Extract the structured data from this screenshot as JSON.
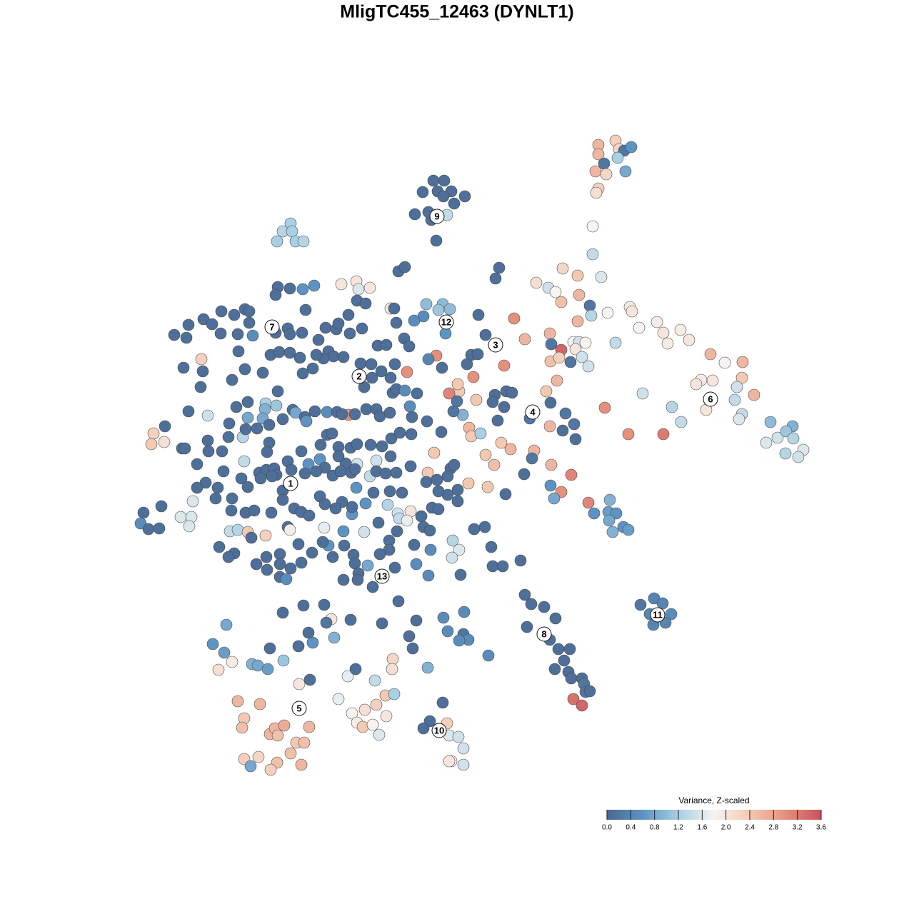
{
  "chart_data": {
    "type": "scatter",
    "title": "MligTC455_12463 (DYNLT1)",
    "xlim": [
      0,
      1280
    ],
    "ylim": [
      1280,
      0
    ],
    "x": [
      607,
      622,
      592,
      613,
      632,
      651,
      621,
      636,
      581,
      604,
      626,
      611,
      600,
      862,
      838,
      867,
      874,
      884,
      838,
      865,
      846,
      834,
      849,
      876,
      838,
      835,
      830,
      830,
      842,
      407,
      396,
      409,
      388,
      414,
      425,
      788,
      809,
      751,
      768,
      778,
      786,
      811,
      826,
      828,
      809,
      851,
      882,
      885,
      895,
      920,
      929,
      953,
      935,
      965,
      770,
      772,
      786,
      803,
      811,
      820,
      806,
      815,
      824,
      771,
      783,
      799,
      862,
      765,
      780,
      735,
      720,
      706,
      663,
      643,
      629,
      611,
      570,
      488,
      995,
      1015,
      1040,
      1039,
      982,
      975,
      998,
      1032,
      1056,
      900,
      941,
      989,
      1039,
      1035,
      954,
      847,
      880,
      929,
      1079,
      1110,
      1089,
      1101,
      1111,
      1073,
      1100,
      1125,
      1118,
      1029,
      693,
      709,
      717,
      706,
      690,
      697,
      742,
      771,
      792,
      804,
      788,
      806,
      770,
      748,
      745,
      734,
      772,
      800,
      771,
      786,
      776,
      708,
      824,
      832,
      854,
      852,
      863,
      853,
      873,
      880,
      858,
      715,
      702,
      692,
      680,
      683,
      657,
      660,
      673,
      667,
      648,
      635,
      640,
      641,
      916,
      928,
      897,
      910,
      940,
      932,
      915,
      735,
      744,
      762,
      778,
      738,
      770,
      782,
      798,
      790,
      777,
      796,
      800,
      815,
      818,
      820,
      826,
      803,
      815,
      729,
      690,
      704,
      688,
      317,
      298,
      314,
      325,
      306,
      353,
      361,
      375,
      397,
      378,
      418,
      434,
      419,
      333,
      364,
      342,
      339,
      378,
      385,
      398,
      389,
      433,
      415,
      426,
      407,
      342,
      362,
      388,
      422,
      351,
      379,
      464,
      457,
      491,
      468,
      438,
      432,
      487,
      498,
      474,
      493,
      511,
      500,
      508,
      522,
      531,
      541,
      527,
      540,
      552,
      550,
      549,
      525,
      599,
      620,
      602,
      593,
      626,
      629,
      642,
      649,
      632,
      629,
      649,
      396,
      425,
      454,
      535,
      558,
      583,
      621,
      650,
      627,
      649,
      656,
      643,
      573,
      578,
      684,
      558,
      567,
      699,
      694,
      389,
      406,
      424,
      440,
      386,
      478,
      499,
      502,
      518,
      500,
      512,
      547,
      552,
      597,
      620,
      630,
      614,
      593,
      580,
      624,
      670,
      680,
      660,
      669,
      654,
      619,
      600,
      244,
      264,
      261,
      285,
      297,
      310,
      328,
      343,
      349,
      349,
      309,
      333,
      354,
      282,
      257,
      284,
      334,
      343,
      368,
      379,
      391,
      406,
      420,
      389,
      403,
      406,
      386,
      423,
      428,
      456,
      471,
      474,
      490,
      507,
      488,
      446,
      460,
      467,
      453,
      443,
      438,
      424,
      481,
      505,
      520,
      529,
      541,
      553,
      566,
      573,
      555,
      510,
      521,
      534,
      547,
      550,
      555,
      567,
      584,
      281,
      325,
      347,
      372,
      387,
      371,
      264,
      291,
      331,
      347,
      368,
      377,
      396,
      410,
      414,
      427,
      429,
      441,
      458,
      472,
      479,
      497,
      513,
      527,
      532,
      546,
      574,
      577,
      598,
      618,
      231,
      215,
      212,
      230,
      255,
      259,
      276,
      291,
      292,
      311,
      320,
      321,
      340,
      344,
      360,
      377,
      374,
      342,
      338,
      363,
      373,
      384,
      403,
      422,
      432,
      448,
      449,
      458,
      465,
      474,
      491,
      500,
      519,
      535,
      548,
      560,
      576,
      608,
      547,
      527,
      500,
      484,
      474,
      455,
      443,
      427,
      408,
      387,
      381,
      365,
      396,
      288,
      305,
      276,
      313,
      347,
      325,
      302,
      270,
      226,
      201,
      197,
      208,
      223,
      253,
      268,
      265,
      324,
      344,
      356,
      380,
      396,
      412,
      422,
      433,
      448,
      466,
      477,
      492,
      497,
      518,
      527,
      540,
      555,
      575,
      599,
      597,
      612,
      631,
      636,
      627,
      627,
      641,
      614,
      641,
      656,
      605,
      614,
      590,
      575,
      563,
      546,
      543,
      557,
      559,
      570,
      523,
      512,
      493,
      493,
      499,
      479,
      470,
      455,
      454,
      481,
      510,
      530,
      545,
      556,
      593,
      602,
      634,
      643,
      633,
      603,
      580,
      545,
      532,
      495,
      482,
      466,
      460,
      452,
      437,
      418,
      392,
      392,
      407,
      422,
      373,
      359,
      328,
      320,
      307,
      322,
      333,
      347,
      352,
      372,
      403,
      406,
      374,
      392,
      401,
      497,
      515,
      502,
      481,
      501,
      522,
      553,
      583,
      600,
      645,
      664,
      679,
      536
    ],
    "y": [
      253,
      253,
      269,
      268,
      268,
      275,
      275,
      285,
      300,
      308,
      301,
      337,
      297,
      197,
      203,
      209,
      211,
      206,
      216,
      221,
      229,
      240,
      244,
      240,
      264,
      270,
      317,
      356,
      388,
      313,
      324,
      324,
      338,
      338,
      338,
      376,
      386,
      396,
      403,
      409,
      423,
      413,
      428,
      442,
      450,
      438,
      430,
      436,
      459,
      451,
      466,
      462,
      481,
      476,
      467,
      482,
      490,
      479,
      479,
      480,
      489,
      500,
      513,
      506,
      501,
      507,
      480,
      548,
      533,
      475,
      446,
      512,
      528,
      548,
      551,
      498,
      521,
      581,
      496,
      508,
      507,
      529,
      532,
      538,
      533,
      542,
      553,
      551,
      570,
      574,
      580,
      587,
      591,
      571,
      608,
      608,
      591,
      597,
      613,
      604,
      614,
      620,
      635,
      630,
      640,
      560,
      553,
      548,
      550,
      570,
      563,
      589,
      586,
      564,
      579,
      594,
      603,
      615,
      597,
      631,
      642,
      664,
      651,
      665,
      680,
      689,
      698,
      692,
      704,
      719,
      700,
      717,
      719,
      729,
      738,
      742,
      745,
      629,
      620,
      651,
      637,
      682,
      599,
      611,
      607,
      560,
      581,
      576,
      562,
      538,
      838,
      845,
      847,
      860,
      860,
      872,
      875,
      833,
      846,
      850,
      866,
      878,
      896,
      909,
      909,
      925,
      937,
      941,
      950,
      950,
      958,
      969,
      968,
      979,
      988,
      785,
      793,
      793,
      766,
      875,
      902,
      914,
      927,
      938,
      930,
      932,
      937,
      925,
      908,
      905,
      952,
      958,
      982,
      986,
      1006,
      1019,
      1028,
      1020,
      1016,
      1030,
      1018,
      1040,
      1040,
      1055,
      1063,
      1060,
      1068,
      1071,
      1073,
      1078,
      867,
      872,
      868,
      893,
      900,
      886,
      947,
      937,
      979,
      999,
      994,
      1012,
      1018,
      1015,
      1029,
      1003,
      987,
      974,
      972,
      923,
      937,
      953,
      935,
      984,
      1010,
      1020,
      1013,
      1030,
      1032,
      1048,
      1066,
      1066,
      1071,
      858,
      848,
      847,
      873,
      842,
      869,
      865,
      857,
      884,
      888,
      896,
      897,
      891,
      908,
      918,
      380,
      374,
      375,
      390,
      402,
      404,
      405,
      400,
      413,
      398,
      394,
      405,
      403,
      421,
      425,
      432,
      432,
      426,
      426,
      433,
      434,
      443,
      449,
      467,
      441,
      469,
      497,
      496,
      510,
      515,
      503,
      469,
      455,
      473,
      447,
      454,
      436,
      441,
      433,
      436,
      452,
      467,
      468,
      470,
      503,
      515,
      520,
      492,
      517,
      522,
      497,
      493,
      494,
      501,
      548,
      460,
      468,
      466,
      466,
      434,
      459,
      461,
      453,
      467,
      460,
      441,
      476,
      492,
      499,
      502,
      497,
      516,
      523,
      500,
      509,
      510,
      484,
      483,
      510,
      474,
      485,
      452,
      542,
      529,
      520,
      529,
      550,
      545,
      547,
      551,
      542,
      532,
      563,
      565,
      568,
      573,
      576,
      582,
      570,
      585,
      586,
      595,
      587,
      574,
      578,
      584,
      590,
      576,
      577,
      577,
      580,
      580,
      573,
      573,
      583,
      578,
      569,
      584,
      590,
      605,
      597,
      607,
      622,
      619,
      628,
      628,
      650,
      617,
      632,
      632,
      612,
      593,
      612,
      601,
      600,
      620,
      633,
      646,
      670,
      662,
      658,
      656,
      646,
      632,
      650,
      643,
      623,
      609,
      607,
      626,
      627,
      622,
      623,
      625,
      614,
      606,
      608,
      634,
      639,
      645,
      650,
      649,
      639,
      655,
      660,
      663,
      658,
      665,
      667,
      670,
      687,
      676,
      683,
      683,
      660,
      682,
      698,
      698,
      702,
      709,
      718,
      733,
      741,
      740,
      724,
      724,
      737,
      715,
      718,
      715,
      718,
      700,
      712,
      717,
      722,
      695,
      666,
      660,
      662,
      657,
      667,
      660,
      663,
      662,
      653,
      662,
      675,
      672,
      656,
      651,
      667,
      693,
      686,
      688,
      702,
      677,
      711,
      713,
      723,
      716,
      690,
      688,
      707,
      719,
      726,
      729,
      690,
      705,
      720,
      710,
      683,
      703,
      712,
      706,
      739,
      744,
      745,
      732,
      757,
      744,
      738,
      743,
      757,
      770,
      781,
      770,
      763,
      770,
      776,
      777,
      764,
      780,
      764,
      759,
      774,
      762,
      776,
      790,
      796,
      788,
      780,
      790,
      775,
      780,
      766,
      744,
      742,
      745,
      753,
      750,
      738,
      742,
      798,
      808,
      811,
      789,
      792,
      803,
      812,
      812,
      822,
      795,
      790,
      806,
      805,
      741,
      738,
      808
    ],
    "values": [
      0.1,
      0.1,
      0.1,
      0.1,
      0.1,
      0.1,
      0.1,
      0.1,
      0.1,
      0.1,
      1.4,
      0.1,
      0.1,
      2.3,
      2.6,
      2.2,
      0.2,
      0.6,
      2.6,
      1.2,
      0.2,
      2.6,
      2.2,
      0.8,
      2.3,
      2.1,
      1.8,
      1.4,
      1.6,
      1.2,
      1.3,
      1.2,
      1.2,
      1.2,
      1.3,
      2.2,
      2.4,
      2.1,
      1.5,
      1.8,
      2.5,
      2.6,
      0.2,
      1.3,
      2.6,
      1.8,
      1.9,
      2.0,
      1.8,
      1.9,
      2.0,
      1.9,
      1.9,
      2.0,
      2.6,
      0.2,
      3.4,
      1.8,
      1.5,
      1.8,
      2.0,
      1.5,
      1.5,
      2.5,
      2.3,
      0.2,
      1.4,
      2.4,
      2.6,
      2.6,
      3.0,
      3.0,
      3.0,
      2.4,
      3.1,
      3.0,
      3.0,
      3.0,
      2.6,
      1.8,
      2.6,
      2.4,
      1.9,
      2.0,
      2.0,
      1.5,
      2.6,
      1.5,
      1.3,
      2.0,
      1.4,
      1.6,
      1.4,
      3.0,
      3.0,
      3.2,
      1.0,
      0.9,
      1.5,
      1.1,
      1.3,
      1.6,
      1.3,
      1.6,
      1.5,
      1.4,
      0.1,
      0.1,
      0.1,
      0.1,
      0.1,
      0.1,
      0.2,
      0.1,
      0.2,
      0.2,
      0.1,
      0.1,
      2.6,
      2.6,
      0.2,
      0.1,
      2.6,
      3.1,
      0.6,
      3.0,
      0.8,
      0.1,
      3.1,
      0.6,
      0.9,
      0.7,
      0.6,
      0.8,
      0.6,
      0.7,
      0.9,
      2.6,
      2.4,
      2.5,
      2.4,
      2.4,
      2.6,
      2.4,
      1.2,
      2.4,
      0.9,
      0.2,
      0.2,
      2.4,
      0.4,
      0.4,
      0.2,
      0.4,
      0.5,
      0.4,
      0.4,
      0.1,
      0.1,
      0.1,
      0.1,
      0.1,
      0.1,
      0.1,
      0.1,
      0.1,
      0.1,
      0.1,
      0.1,
      0.1,
      0.2,
      0.2,
      0.1,
      3.3,
      3.4,
      0.1,
      0.1,
      0.1,
      0.1,
      0.8,
      0.6,
      0.7,
      1.9,
      2.1,
      0.9,
      0.8,
      0.7,
      1.1,
      0.1,
      0.1,
      0.1,
      2.0,
      2.6,
      2.6,
      2.4,
      2.5,
      2.6,
      2.6,
      2.7,
      2.5,
      2.6,
      2.4,
      2.5,
      2.5,
      2.3,
      2.2,
      2.5,
      2.6,
      0.8,
      2.3,
      2.0,
      0.2,
      0.1,
      0.9,
      0.6,
      0.1,
      1.7,
      0.1,
      1.7,
      1.8,
      2.1,
      1.9,
      2.4,
      1.8,
      1.6,
      2.0,
      2.3,
      2.4,
      1.2,
      2.2,
      2.1,
      1.4,
      0.9,
      0.1,
      0.1,
      0.1,
      2.3,
      1.6,
      1.5,
      1.5,
      1.8,
      2.0,
      1.5,
      0.1,
      0.1,
      0.1,
      0.1,
      0.1,
      0.1,
      0.5,
      0.5,
      0.5,
      0.2,
      0.5,
      0.5,
      0.1,
      0.1,
      0.5,
      0.1,
      0.1,
      0.1,
      0.1,
      0.1,
      0.1,
      0.6,
      0.6,
      0.1,
      2.0,
      2.0,
      1.6,
      2.0,
      0.1,
      0.1,
      2.0,
      0.1,
      1.0,
      1.0,
      1.0,
      1.1,
      0.5,
      0.5,
      0.6,
      0.1,
      0.1,
      0.1,
      0.1,
      0.1,
      0.1,
      0.4,
      0.1,
      0.1,
      0.1,
      0.1,
      0.1,
      0.1,
      0.1,
      0.1,
      0.1,
      0.1,
      0.1,
      0.1,
      0.5,
      2.3,
      0.1,
      0.1,
      0.1,
      0.1,
      0.1,
      0.1,
      0.1,
      0.1,
      0.1,
      0.1,
      0.1,
      0.1,
      0.1,
      0.1,
      0.1,
      0.1,
      0.1,
      0.1,
      0.1,
      0.1,
      0.1,
      0.1,
      0.1,
      0.1,
      0.1,
      0.1,
      0.1,
      0.1,
      0.1,
      0.1,
      0.1,
      0.1,
      0.1,
      0.1,
      0.1,
      0.1,
      0.1,
      0.1,
      0.1,
      0.1,
      0.1,
      0.1,
      0.1,
      0.5,
      0.1,
      0.1,
      0.1,
      0.1,
      1.2,
      1.1,
      0.9,
      0.1,
      1.5,
      0.1,
      0.8,
      0.8,
      0.1,
      0.1,
      0.1,
      0.8,
      0.1,
      0.6,
      0.1,
      0.5,
      0.1,
      0.1,
      0.1,
      0.1,
      0.1,
      0.1,
      0.1,
      0.5,
      0.1,
      0.1,
      0.1,
      0.1,
      2.3,
      2.4,
      2.1,
      0.1,
      0.1,
      0.1,
      0.1,
      0.1,
      0.1,
      0.1,
      0.1,
      1.3,
      0.1,
      0.1,
      0.1,
      0.1,
      1.4,
      0.1,
      0.1,
      0.1,
      0.1,
      0.1,
      0.1,
      0.6,
      0.6,
      0.1,
      0.1,
      0.1,
      0.1,
      0.1,
      0.1,
      0.1,
      0.1,
      0.1,
      0.1,
      0.1,
      2.4,
      0.1,
      1.5,
      1.5,
      0.1,
      0.1,
      0.1,
      0.1,
      0.1,
      0.1,
      0.1,
      0.1,
      0.1,
      0.1,
      0.1,
      0.1,
      0.1,
      0.1,
      0.1,
      0.1,
      0.1,
      1.6,
      0.1,
      0.1,
      0.5,
      0.1,
      0.1,
      1.6,
      1.6,
      1.6,
      0.1,
      0.1,
      0.1,
      0.1,
      0.1,
      0.1,
      0.1,
      0.1,
      0.1,
      0.1,
      0.1,
      0.1,
      0.1,
      1.4,
      0.1,
      0.1,
      0.1,
      0.1,
      2.4,
      0.1,
      0.1,
      0.1,
      0.1,
      0.1,
      0.1,
      0.1,
      0.1,
      0.1,
      2.4,
      0.1,
      0.1,
      0.1,
      2.0,
      0.1,
      0.1,
      1.3,
      1.5,
      1.4,
      1.7,
      0.1,
      0.6,
      0.6,
      0.1,
      0.6,
      0.1,
      0.1,
      0.1,
      1.7,
      0.6,
      1.5,
      0.1,
      0.1,
      0.1,
      0.1,
      0.1,
      1.3,
      1.6,
      1.5,
      0.5,
      0.1,
      0.1,
      0.1,
      0.1,
      0.1,
      0.1,
      0.6,
      0.1,
      0.1,
      0.1,
      0.1,
      0.1,
      0.1,
      0.1,
      0.1,
      0.1,
      0.1,
      0.1,
      0.1,
      1.4,
      1.3,
      2.4,
      0.1,
      2.3,
      0.1,
      1.9,
      0.1,
      0.1,
      0.5,
      0.1,
      0.8,
      0.1,
      0.1,
      0.1,
      0.1,
      0.1,
      0.5,
      0.5,
      0.1,
      0.1,
      0.1,
      0.2
    ],
    "clusters": {
      "labels": [
        "1",
        "2",
        "3",
        "4",
        "5",
        "6",
        "7",
        "8",
        "9",
        "10",
        "11",
        "12",
        "13"
      ],
      "x": [
        407,
        503,
        694,
        746,
        419,
        995,
        381,
        762,
        612,
        615,
        921,
        625,
        535
      ],
      "y": [
        677,
        527,
        483,
        577,
        992,
        559,
        458,
        888,
        303,
        1023,
        861,
        451,
        807
      ]
    },
    "colorbar": {
      "title": "Variance, Z-scaled",
      "lim": [
        0,
        3.6
      ],
      "ticks": [
        {
          "value": 0,
          "label": "0.0"
        },
        0.4,
        0.8,
        1.2,
        1.6,
        {
          "value": 2,
          "label": "2.0"
        },
        2.4,
        2.8,
        3.2,
        3.6
      ],
      "colors": [
        "#4a6890",
        "#5d93c3",
        "#a8cfe3",
        "#f6f3f1",
        "#f3c9b2",
        "#e5907c",
        "#c9515f"
      ]
    }
  }
}
